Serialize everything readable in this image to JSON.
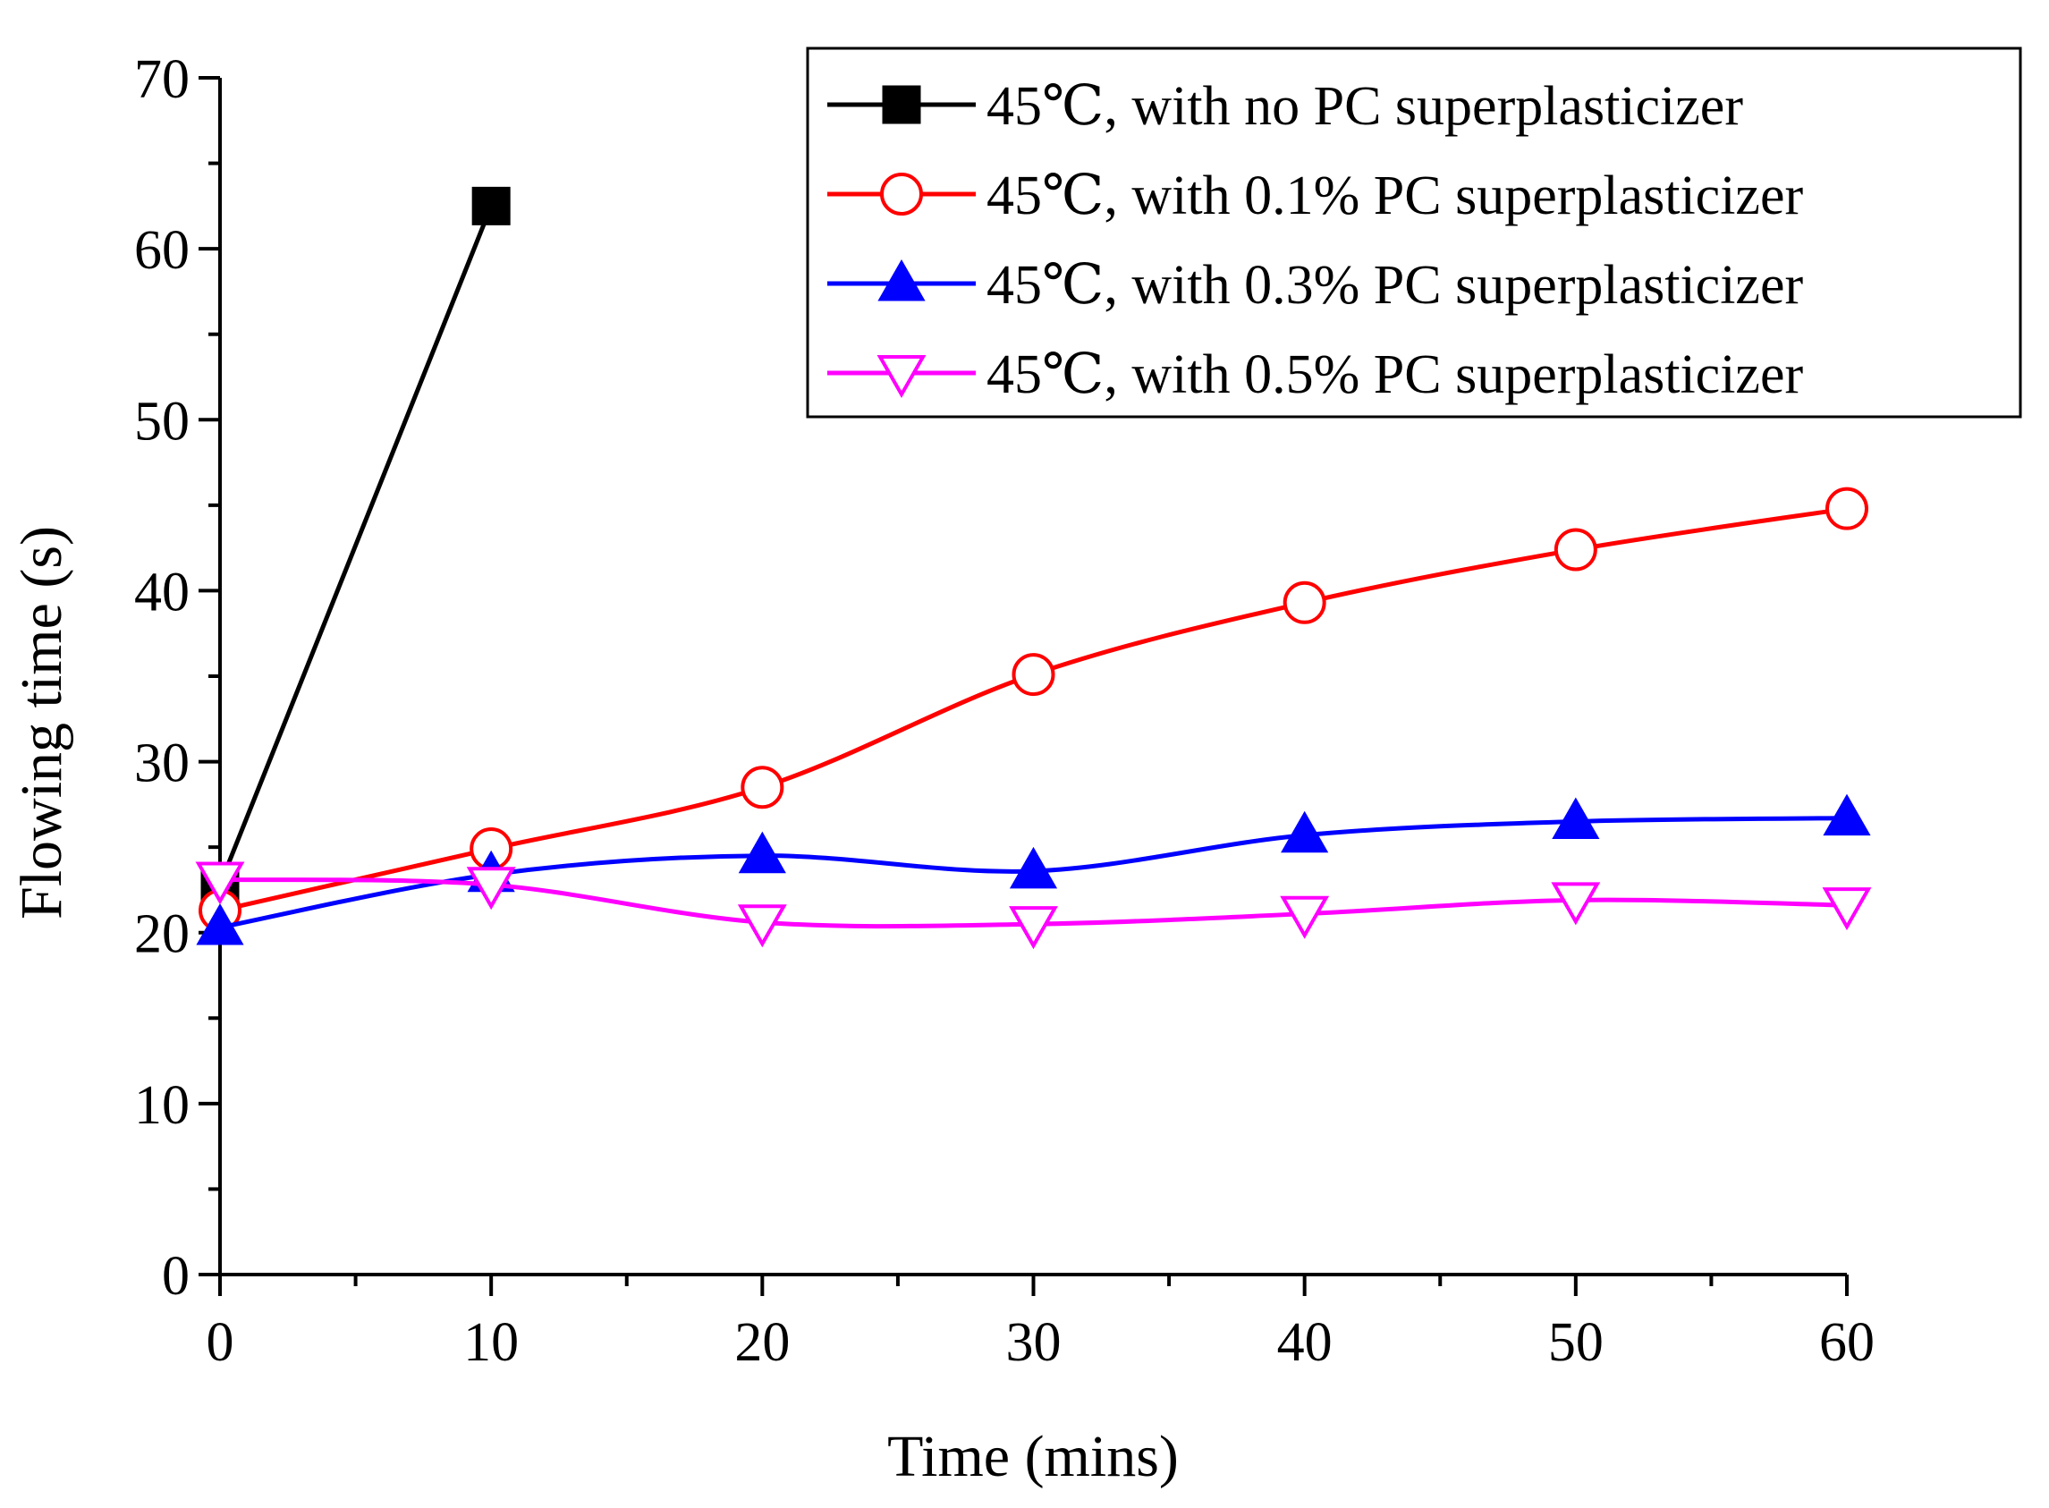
{
  "chart_data": {
    "type": "line",
    "title": "",
    "xlabel": "Time (mins)",
    "ylabel": "Flowing time (s)",
    "xlim": [
      0,
      60
    ],
    "ylim": [
      0,
      70
    ],
    "xticks": [
      0,
      10,
      20,
      30,
      40,
      50,
      60
    ],
    "yticks": [
      0,
      10,
      20,
      30,
      40,
      50,
      60,
      70
    ],
    "grid": false,
    "legend_position": "top-right",
    "series": [
      {
        "name": "45℃, with no PC superplasticizer",
        "color": "#000000",
        "marker": "square-filled",
        "x": [
          0,
          10
        ],
        "y": [
          22.8,
          62.5
        ]
      },
      {
        "name": "45℃, with 0.1% PC superplasticizer",
        "color": "#ff0000",
        "marker": "circle-open",
        "x": [
          0,
          10,
          20,
          30,
          40,
          50,
          60
        ],
        "y": [
          21.3,
          24.9,
          28.5,
          35.1,
          39.3,
          42.4,
          44.8
        ]
      },
      {
        "name": "45℃, with 0.3% PC superplasticizer",
        "color": "#0000ff",
        "marker": "triangle-up-filled",
        "x": [
          0,
          10,
          20,
          30,
          40,
          50,
          60
        ],
        "y": [
          20.3,
          23.4,
          24.5,
          23.6,
          25.7,
          26.5,
          26.7
        ]
      },
      {
        "name": "45℃, with 0.5% PC superplasticizer",
        "color": "#ff00ff",
        "marker": "triangle-down-open",
        "x": [
          0,
          10,
          20,
          30,
          40,
          50,
          60
        ],
        "y": [
          23.1,
          22.8,
          20.6,
          20.5,
          21.1,
          21.9,
          21.6
        ]
      }
    ]
  }
}
